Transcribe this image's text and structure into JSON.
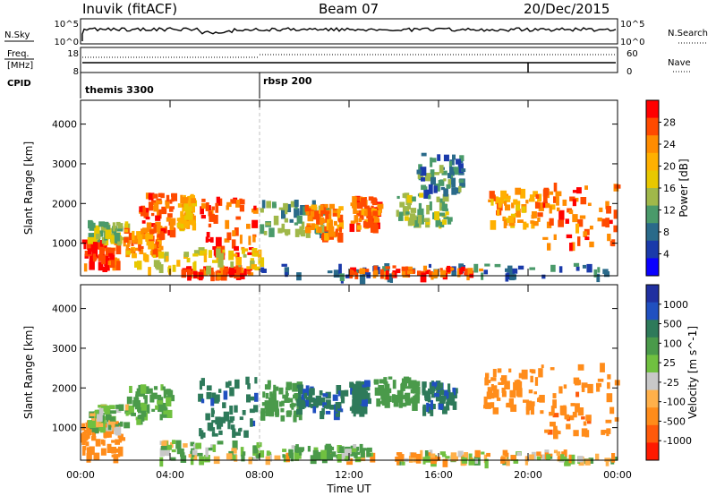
{
  "header": {
    "station": "Inuvik (fitACF)",
    "beam": "Beam 07",
    "date": "20/Dec/2015"
  },
  "nsky_panel": {
    "left_label": "N.Sky",
    "right_label": "N.Search",
    "ticks_left": [
      "10^5",
      "10^0"
    ],
    "ticks_right": [
      "10^5",
      "10^0"
    ]
  },
  "freq_panel": {
    "left_label_1": "Freq.",
    "left_label_2": "[MHz]",
    "right_label": "Nave",
    "ticks_left": [
      "18",
      "8"
    ],
    "ticks_right": [
      "60",
      "0"
    ]
  },
  "cpid_panel": {
    "label": "CPID",
    "modes": [
      {
        "name": "themis 3300",
        "start_hour": 0
      },
      {
        "name": "rbsp 200",
        "start_hour": 8
      }
    ]
  },
  "chart_data": [
    {
      "type": "heatmap",
      "title": "",
      "xlabel": "",
      "ylabel": "Slant Range [km]",
      "xlim": [
        0,
        24
      ],
      "ylim": [
        180,
        4600
      ],
      "x_ticks": [
        "00:00",
        "04:00",
        "08:00",
        "12:00",
        "16:00",
        "20:00",
        "00:00"
      ],
      "y_ticks": [
        1000,
        2000,
        3000,
        4000
      ],
      "colorbar": {
        "label": "Power [dB]",
        "ticks": [
          "28",
          "24",
          "20",
          "16",
          "12",
          "8",
          "4"
        ],
        "colors": [
          "#ff0000",
          "#ff4a00",
          "#ff8c00",
          "#ffb000",
          "#e8c800",
          "#a0b84a",
          "#4a9a6a",
          "#2a6a8a",
          "#1a3aaa",
          "#0a00ff"
        ]
      },
      "patches": [
        {
          "t0": 0.0,
          "t1": 1.6,
          "r0": 400,
          "r1": 1100,
          "v": 28
        },
        {
          "t0": 0.3,
          "t1": 2.0,
          "r0": 1100,
          "r1": 1600,
          "v": 14
        },
        {
          "t0": 1.9,
          "t1": 3.6,
          "r0": 800,
          "r1": 1400,
          "v": 24
        },
        {
          "t0": 2.6,
          "t1": 4.1,
          "r0": 1300,
          "r1": 2300,
          "v": 26
        },
        {
          "t0": 4.3,
          "t1": 5.0,
          "r0": 1500,
          "r1": 2300,
          "v": 20
        },
        {
          "t0": 5.3,
          "t1": 7.8,
          "r0": 700,
          "r1": 2200,
          "v": 27
        },
        {
          "t0": 4.5,
          "t1": 7.5,
          "r0": 250,
          "r1": 450,
          "v": 28
        },
        {
          "t0": 8.0,
          "t1": 11.0,
          "r0": 1300,
          "r1": 2100,
          "v": 12
        },
        {
          "t0": 10.0,
          "t1": 11.6,
          "r0": 1200,
          "r1": 2000,
          "v": 24
        },
        {
          "t0": 12.0,
          "t1": 13.3,
          "r0": 1400,
          "r1": 2200,
          "v": 26
        },
        {
          "t0": 14.0,
          "t1": 16.4,
          "r0": 1500,
          "r1": 2300,
          "v": 14
        },
        {
          "t0": 18.2,
          "t1": 20.5,
          "r0": 1500,
          "r1": 2400,
          "v": 22
        },
        {
          "t0": 20.5,
          "t1": 23.9,
          "r0": 1000,
          "r1": 2600,
          "v": 26
        },
        {
          "t0": 8.0,
          "t1": 23.9,
          "r0": 200,
          "r1": 500,
          "v": 8
        },
        {
          "t0": 12.0,
          "t1": 18.0,
          "r0": 250,
          "r1": 450,
          "v": 26
        },
        {
          "t0": 2.0,
          "t1": 8.0,
          "r0": 400,
          "r1": 900,
          "v": 18
        },
        {
          "t0": 15.0,
          "t1": 17.0,
          "r0": 2200,
          "r1": 3300,
          "v": 10
        }
      ]
    },
    {
      "type": "heatmap",
      "title": "",
      "xlabel": "Time UT",
      "ylabel": "Slant Range [km]",
      "xlim": [
        0,
        24
      ],
      "ylim": [
        180,
        4600
      ],
      "x_ticks": [
        "00:00",
        "04:00",
        "08:00",
        "12:00",
        "16:00",
        "20:00",
        "00:00"
      ],
      "y_ticks": [
        1000,
        2000,
        3000,
        4000
      ],
      "colorbar": {
        "label": "Velocity [m s^-1]",
        "ticks": [
          "1000",
          "500",
          "100",
          "25",
          "-25",
          "-100",
          "-500",
          "-1000"
        ],
        "colors": [
          "#2030a0",
          "#2050c0",
          "#2e7a5a",
          "#4a9a4a",
          "#70c040",
          "#c8c8c8",
          "#ffb04a",
          "#ff8c1a",
          "#ff5a0a",
          "#ff1a00"
        ]
      },
      "patches": [
        {
          "t0": 0.0,
          "t1": 1.8,
          "r0": 300,
          "r1": 1200,
          "v": -300
        },
        {
          "t0": 0.3,
          "t1": 2.0,
          "r0": 1000,
          "r1": 1600,
          "v": 80
        },
        {
          "t0": 2.0,
          "t1": 4.0,
          "r0": 1200,
          "r1": 2100,
          "v": 200
        },
        {
          "t0": 3.5,
          "t1": 8.0,
          "r0": 250,
          "r1": 700,
          "v": 60
        },
        {
          "t0": 5.2,
          "t1": 7.8,
          "r0": 800,
          "r1": 2300,
          "v": 900
        },
        {
          "t0": 8.0,
          "t1": 9.8,
          "r0": 1300,
          "r1": 2200,
          "v": 300
        },
        {
          "t0": 9.6,
          "t1": 11.8,
          "r0": 1400,
          "r1": 2100,
          "v": 950
        },
        {
          "t0": 12.0,
          "t1": 12.8,
          "r0": 1500,
          "r1": 2200,
          "v": 900
        },
        {
          "t0": 13.0,
          "t1": 15.0,
          "r0": 1600,
          "r1": 2300,
          "v": 250
        },
        {
          "t0": 15.2,
          "t1": 16.7,
          "r0": 1500,
          "r1": 2200,
          "v": 900
        },
        {
          "t0": 18.0,
          "t1": 20.5,
          "r0": 1500,
          "r1": 2500,
          "v": -250
        },
        {
          "t0": 20.5,
          "t1": 23.9,
          "r0": 900,
          "r1": 2700,
          "v": -400
        },
        {
          "t0": 8.0,
          "t1": 23.9,
          "r0": 200,
          "r1": 450,
          "v": 10
        },
        {
          "t0": 9.0,
          "t1": 13.0,
          "r0": 300,
          "r1": 600,
          "v": 150
        },
        {
          "t0": 14.0,
          "t1": 22.0,
          "r0": 200,
          "r1": 400,
          "v": -50
        }
      ]
    }
  ]
}
